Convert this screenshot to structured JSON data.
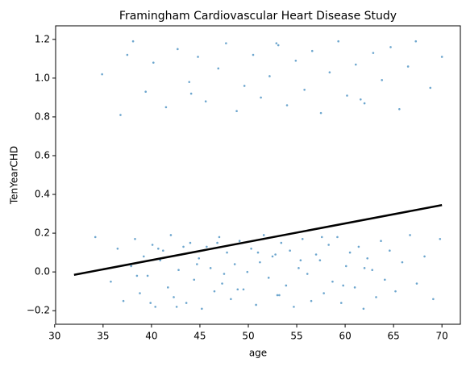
{
  "chart_data": {
    "type": "scatter",
    "title": "Framingham Cardiovascular Heart Disease Study",
    "x_label": "age",
    "y_label": "TenYearCHD",
    "xlim": [
      30.1,
      71.9
    ],
    "ylim": [
      -0.27,
      1.27
    ],
    "xticks": [
      30,
      35,
      40,
      45,
      50,
      55,
      60,
      65,
      70
    ],
    "yticks": [
      {
        "value": -0.2,
        "label": "−0.2"
      },
      {
        "value": 0,
        "label": "0.0"
      },
      0.2,
      0.4,
      0.6,
      0.8,
      {
        "value": 1,
        "label": "1.0"
      },
      1.2
    ],
    "series": [
      {
        "mode": "points",
        "color": "#1f77b4",
        "x": [
          34.2,
          35.8,
          36.5,
          37.1,
          37.9,
          38.3,
          38.8,
          39.2,
          39.6,
          40.1,
          40.4,
          40.9,
          41.2,
          41.7,
          42.0,
          42.3,
          42.8,
          43.1,
          43.6,
          44.0,
          44.4,
          44.9,
          45.2,
          45.7,
          46.1,
          46.5,
          47.0,
          47.3,
          47.8,
          48.2,
          48.6,
          49.1,
          49.5,
          49.9,
          50.3,
          50.8,
          51.2,
          51.6,
          52.1,
          52.5,
          53.0,
          53.4,
          53.9,
          54.3,
          54.7,
          55.2,
          55.6,
          56.1,
          56.5,
          57.0,
          57.4,
          57.8,
          58.3,
          58.7,
          59.2,
          59.6,
          60.1,
          60.5,
          61.0,
          61.4,
          61.9,
          62.3,
          62.8,
          63.2,
          63.7,
          64.1,
          64.6,
          65.2,
          65.9,
          66.7,
          67.4,
          68.2,
          69.1,
          69.8,
          38.5,
          40.7,
          42.6,
          44.7,
          46.8,
          48.9,
          51.0,
          53.2,
          55.4,
          57.6,
          59.8,
          62.0,
          39.9,
          43.3,
          47.5,
          52.8,
          34.9,
          36.8,
          38.1,
          39.4,
          40.2,
          41.5,
          42.7,
          43.9,
          44.8,
          45.6,
          46.9,
          47.7,
          48.8,
          49.6,
          50.5,
          51.3,
          52.2,
          53.1,
          54.0,
          54.9,
          55.8,
          56.6,
          57.5,
          58.4,
          59.3,
          60.2,
          61.1,
          62.0,
          62.9,
          63.8,
          64.7,
          65.6,
          66.5,
          67.3,
          68.8,
          70.0,
          37.5,
          44.1,
          52.9,
          61.6
        ],
        "values": [
          0.18,
          -0.05,
          0.12,
          -0.15,
          0.03,
          0.17,
          -0.11,
          0.08,
          -0.02,
          0.14,
          -0.18,
          0.06,
          0.11,
          -0.08,
          0.19,
          -0.13,
          0.01,
          0.09,
          -0.16,
          0.15,
          -0.04,
          0.07,
          -0.19,
          0.13,
          0.02,
          -0.1,
          0.18,
          -0.06,
          0.1,
          -0.14,
          0.04,
          0.16,
          -0.09,
          0.0,
          0.12,
          -0.17,
          0.05,
          0.19,
          -0.03,
          0.08,
          -0.12,
          0.15,
          -0.07,
          0.11,
          -0.18,
          0.02,
          0.17,
          -0.01,
          -0.15,
          0.09,
          0.06,
          -0.11,
          0.14,
          -0.05,
          0.18,
          -0.16,
          0.03,
          0.1,
          -0.08,
          0.13,
          -0.19,
          0.07,
          0.01,
          -0.13,
          0.16,
          -0.04,
          0.11,
          -0.1,
          0.05,
          0.19,
          -0.06,
          0.08,
          -0.14,
          0.17,
          -0.02,
          0.12,
          -0.18,
          0.04,
          0.15,
          -0.09,
          0.1,
          -0.12,
          0.06,
          0.18,
          -0.07,
          0.02,
          -0.16,
          0.13,
          -0.01,
          0.09,
          1.02,
          0.81,
          1.19,
          0.93,
          1.08,
          0.85,
          1.15,
          0.98,
          1.11,
          0.88,
          1.05,
          1.18,
          0.83,
          0.96,
          1.12,
          0.9,
          1.01,
          1.17,
          0.86,
          1.09,
          0.94,
          1.14,
          0.82,
          1.03,
          1.19,
          0.91,
          1.07,
          0.87,
          1.13,
          0.99,
          1.16,
          0.84,
          1.06,
          1.19,
          0.95,
          1.11,
          1.12,
          0.92,
          1.18,
          0.89
        ]
      },
      {
        "mode": "line",
        "color": "#000000",
        "x": [
          32,
          70
        ],
        "values": [
          -0.015,
          0.345
        ]
      }
    ]
  }
}
